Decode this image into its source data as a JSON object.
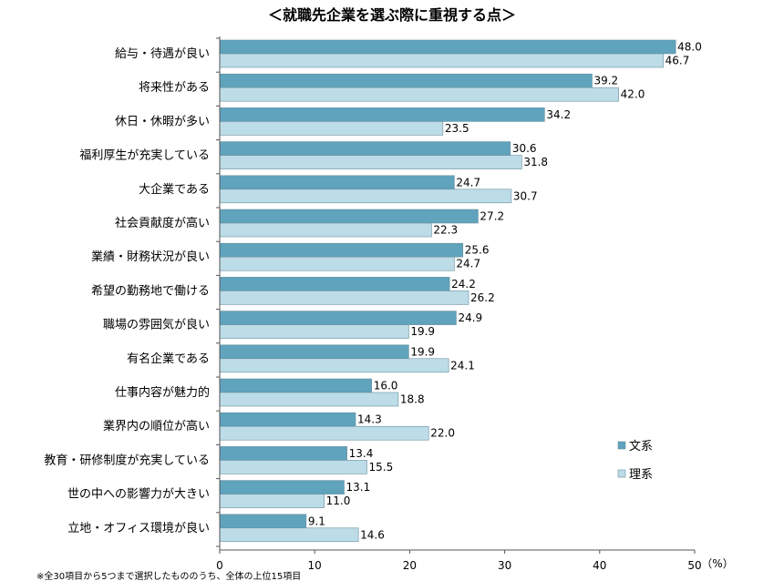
{
  "chart_data": {
    "type": "bar",
    "orientation": "horizontal",
    "title": "＜就職先企業を選ぶ際に重視する点＞",
    "categories": [
      "給与・待遇が良い",
      "将来性がある",
      "休日・休暇が多い",
      "福利厚生が充実している",
      "大企業である",
      "社会貢献度が高い",
      "業績・財務状況が良い",
      "希望の勤務地で働ける",
      "職場の雰囲気が良い",
      "有名企業である",
      "仕事内容が魅力的",
      "業界内の順位が高い",
      "教育・研修制度が充実している",
      "世の中への影響力が大きい",
      "立地・オフィス環境が良い"
    ],
    "series": [
      {
        "name": "文系",
        "color": "#5FA3BC",
        "values": [
          48.0,
          39.2,
          34.2,
          30.6,
          24.7,
          27.2,
          25.6,
          24.2,
          24.9,
          19.9,
          16.0,
          14.3,
          13.4,
          13.1,
          9.1
        ]
      },
      {
        "name": "理系",
        "color": "#BCDCE7",
        "values": [
          46.7,
          42.0,
          23.5,
          31.8,
          30.7,
          22.3,
          24.7,
          26.2,
          19.9,
          24.1,
          18.8,
          22.0,
          15.5,
          11.0,
          14.6
        ]
      }
    ],
    "xlim": [
      0,
      50
    ],
    "xticks": [
      "0",
      "10",
      "20",
      "30",
      "40",
      "50"
    ],
    "xunit": "（%）",
    "legend_position": "right",
    "footnote": "※全30項目から5つまで選択したもののうち、全体の上位15項目"
  }
}
